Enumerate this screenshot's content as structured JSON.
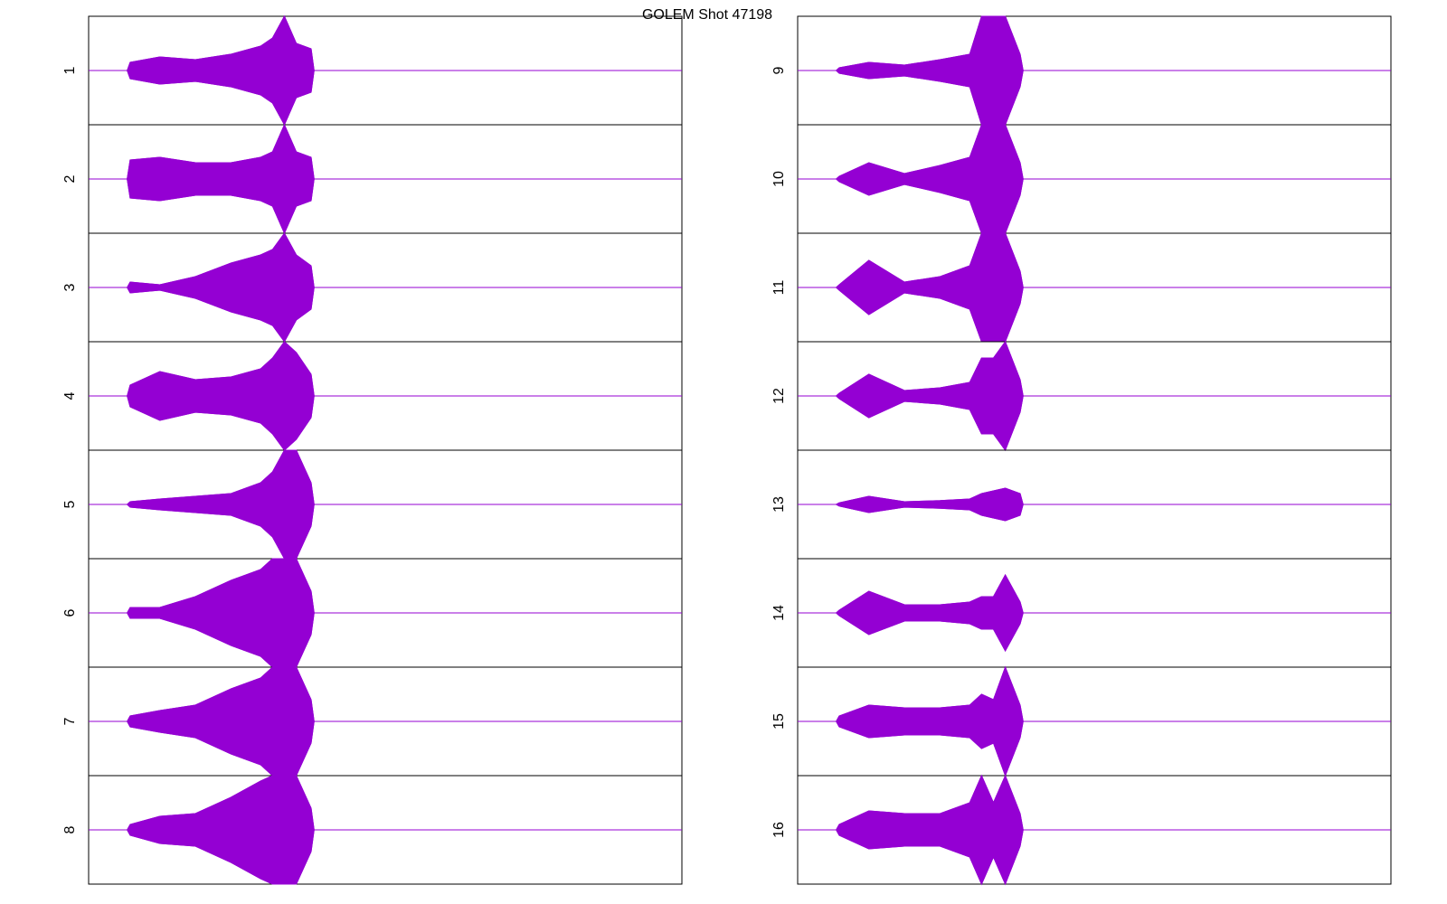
{
  "title": "GOLEM Shot 47198",
  "chart_data": [
    {
      "type": "envelope",
      "ylabel": "1",
      "x": [
        0,
        6.5,
        7,
        12,
        18,
        24,
        29,
        31,
        33,
        35,
        37.5,
        38,
        100
      ],
      "ylim": [
        -1,
        1
      ],
      "xlim": [
        0,
        100
      ],
      "series": [
        {
          "color": "#9400d3",
          "values": [
            0,
            0,
            0.15,
            0.25,
            0.2,
            0.3,
            0.45,
            0.6,
            1,
            0.5,
            0.4,
            0,
            0
          ]
        }
      ]
    },
    {
      "type": "envelope",
      "ylabel": "2",
      "x": [
        0,
        6.5,
        7,
        12,
        18,
        24,
        29,
        31,
        33,
        35,
        37.5,
        38,
        100
      ],
      "ylim": [
        -1,
        1
      ],
      "xlim": [
        0,
        100
      ],
      "series": [
        {
          "color": "#9400d3",
          "values": [
            0,
            0,
            0.35,
            0.4,
            0.3,
            0.3,
            0.4,
            0.5,
            1,
            0.5,
            0.4,
            0,
            0
          ]
        }
      ]
    },
    {
      "type": "envelope",
      "ylabel": "3",
      "x": [
        0,
        6.5,
        7,
        12,
        18,
        24,
        29,
        31,
        33,
        35,
        37.5,
        38,
        100
      ],
      "ylim": [
        -1,
        1
      ],
      "xlim": [
        0,
        100
      ],
      "series": [
        {
          "color": "#9400d3",
          "values": [
            0,
            0,
            0.1,
            0.05,
            0.2,
            0.45,
            0.6,
            0.7,
            1,
            0.6,
            0.4,
            0,
            0
          ]
        }
      ]
    },
    {
      "type": "envelope",
      "ylabel": "4",
      "x": [
        0,
        6.5,
        7,
        12,
        18,
        24,
        29,
        31,
        33,
        35,
        37.5,
        38,
        100
      ],
      "ylim": [
        -1,
        1
      ],
      "xlim": [
        0,
        100
      ],
      "series": [
        {
          "color": "#9400d3",
          "values": [
            0,
            0,
            0.2,
            0.45,
            0.3,
            0.35,
            0.5,
            0.7,
            1,
            0.8,
            0.4,
            0,
            0
          ]
        }
      ]
    },
    {
      "type": "envelope",
      "ylabel": "5",
      "x": [
        0,
        6.5,
        7,
        12,
        18,
        24,
        29,
        31,
        33,
        35,
        37.5,
        38,
        100
      ],
      "ylim": [
        -1,
        1
      ],
      "xlim": [
        0,
        100
      ],
      "series": [
        {
          "color": "#9400d3",
          "values": [
            0,
            0,
            0.05,
            0.1,
            0.15,
            0.2,
            0.4,
            0.6,
            1,
            1,
            0.4,
            0,
            0
          ]
        }
      ]
    },
    {
      "type": "envelope",
      "ylabel": "6",
      "x": [
        0,
        6.5,
        7,
        12,
        18,
        24,
        29,
        31,
        33,
        35,
        37.5,
        38,
        100
      ],
      "ylim": [
        -1,
        1
      ],
      "xlim": [
        0,
        100
      ],
      "series": [
        {
          "color": "#9400d3",
          "values": [
            0,
            0,
            0.1,
            0.1,
            0.3,
            0.6,
            0.8,
            1,
            1,
            1,
            0.4,
            0,
            0
          ]
        }
      ]
    },
    {
      "type": "envelope",
      "ylabel": "7",
      "x": [
        0,
        6.5,
        7,
        12,
        18,
        24,
        29,
        31,
        33,
        35,
        37.5,
        38,
        100
      ],
      "ylim": [
        -1,
        1
      ],
      "xlim": [
        0,
        100
      ],
      "series": [
        {
          "color": "#9400d3",
          "values": [
            0,
            0,
            0.1,
            0.2,
            0.3,
            0.6,
            0.8,
            1,
            1,
            1,
            0.4,
            0,
            0
          ]
        }
      ]
    },
    {
      "type": "envelope",
      "ylabel": "8",
      "x": [
        0,
        6.5,
        7,
        12,
        18,
        24,
        29,
        31,
        33,
        35,
        37.5,
        38,
        100
      ],
      "ylim": [
        -1,
        1
      ],
      "xlim": [
        0,
        100
      ],
      "series": [
        {
          "color": "#9400d3",
          "values": [
            0,
            0,
            0.1,
            0.25,
            0.3,
            0.6,
            0.9,
            1,
            1,
            1,
            0.4,
            0,
            0
          ]
        }
      ]
    },
    {
      "type": "envelope",
      "ylabel": "9",
      "x": [
        0,
        6.5,
        7,
        12,
        18,
        24,
        29,
        31,
        33,
        35,
        37.5,
        38,
        100
      ],
      "ylim": [
        -1,
        1
      ],
      "xlim": [
        0,
        100
      ],
      "series": [
        {
          "color": "#9400d3",
          "values": [
            0,
            0,
            0.05,
            0.15,
            0.1,
            0.2,
            0.3,
            1,
            1,
            1,
            0.3,
            0,
            0
          ]
        }
      ]
    },
    {
      "type": "envelope",
      "ylabel": "10",
      "x": [
        0,
        6.5,
        7,
        12,
        18,
        24,
        29,
        31,
        33,
        35,
        37.5,
        38,
        100
      ],
      "ylim": [
        -1,
        1
      ],
      "xlim": [
        0,
        100
      ],
      "series": [
        {
          "color": "#9400d3",
          "values": [
            0,
            0,
            0.05,
            0.3,
            0.1,
            0.25,
            0.4,
            1,
            1,
            1,
            0.3,
            0,
            0
          ]
        }
      ]
    },
    {
      "type": "envelope",
      "ylabel": "11",
      "x": [
        0,
        6.5,
        7,
        12,
        18,
        24,
        29,
        31,
        33,
        35,
        37.5,
        38,
        100
      ],
      "ylim": [
        -1,
        1
      ],
      "xlim": [
        0,
        100
      ],
      "series": [
        {
          "color": "#9400d3",
          "values": [
            0,
            0,
            0.05,
            0.5,
            0.1,
            0.2,
            0.4,
            1,
            1,
            1,
            0.3,
            0,
            0
          ]
        }
      ]
    },
    {
      "type": "envelope",
      "ylabel": "12",
      "x": [
        0,
        6.5,
        7,
        12,
        18,
        24,
        29,
        31,
        33,
        35,
        37.5,
        38,
        100
      ],
      "ylim": [
        -1,
        1
      ],
      "xlim": [
        0,
        100
      ],
      "series": [
        {
          "color": "#9400d3",
          "values": [
            0,
            0,
            0.05,
            0.4,
            0.1,
            0.15,
            0.25,
            0.7,
            0.7,
            1,
            0.3,
            0,
            0
          ]
        }
      ]
    },
    {
      "type": "envelope",
      "ylabel": "13",
      "x": [
        0,
        6.5,
        7,
        12,
        18,
        24,
        29,
        31,
        33,
        35,
        37.5,
        38,
        100
      ],
      "ylim": [
        -1,
        1
      ],
      "xlim": [
        0,
        100
      ],
      "series": [
        {
          "color": "#9400d3",
          "values": [
            0,
            0,
            0.03,
            0.15,
            0.05,
            0.07,
            0.1,
            0.2,
            0.25,
            0.3,
            0.2,
            0,
            0
          ]
        }
      ]
    },
    {
      "type": "envelope",
      "ylabel": "14",
      "x": [
        0,
        6.5,
        7,
        12,
        18,
        24,
        29,
        31,
        33,
        35,
        37.5,
        38,
        100
      ],
      "ylim": [
        -1,
        1
      ],
      "xlim": [
        0,
        100
      ],
      "series": [
        {
          "color": "#9400d3",
          "values": [
            0,
            0,
            0.05,
            0.4,
            0.15,
            0.15,
            0.2,
            0.3,
            0.3,
            0.7,
            0.2,
            0,
            0
          ]
        }
      ]
    },
    {
      "type": "envelope",
      "ylabel": "15",
      "x": [
        0,
        6.5,
        7,
        12,
        18,
        24,
        29,
        31,
        33,
        35,
        37.5,
        38,
        100
      ],
      "ylim": [
        -1,
        1
      ],
      "xlim": [
        0,
        100
      ],
      "series": [
        {
          "color": "#9400d3",
          "values": [
            0,
            0,
            0.1,
            0.3,
            0.25,
            0.25,
            0.3,
            0.5,
            0.4,
            1,
            0.3,
            0,
            0
          ]
        }
      ]
    },
    {
      "type": "envelope",
      "ylabel": "16",
      "x": [
        0,
        6.5,
        7,
        12,
        18,
        24,
        29,
        31,
        33,
        35,
        37.5,
        38,
        100
      ],
      "ylim": [
        -1,
        1
      ],
      "xlim": [
        0,
        100
      ],
      "series": [
        {
          "color": "#9400d3",
          "values": [
            0,
            0,
            0.1,
            0.35,
            0.3,
            0.3,
            0.5,
            1,
            0.5,
            1,
            0.3,
            0,
            0
          ]
        }
      ]
    }
  ]
}
